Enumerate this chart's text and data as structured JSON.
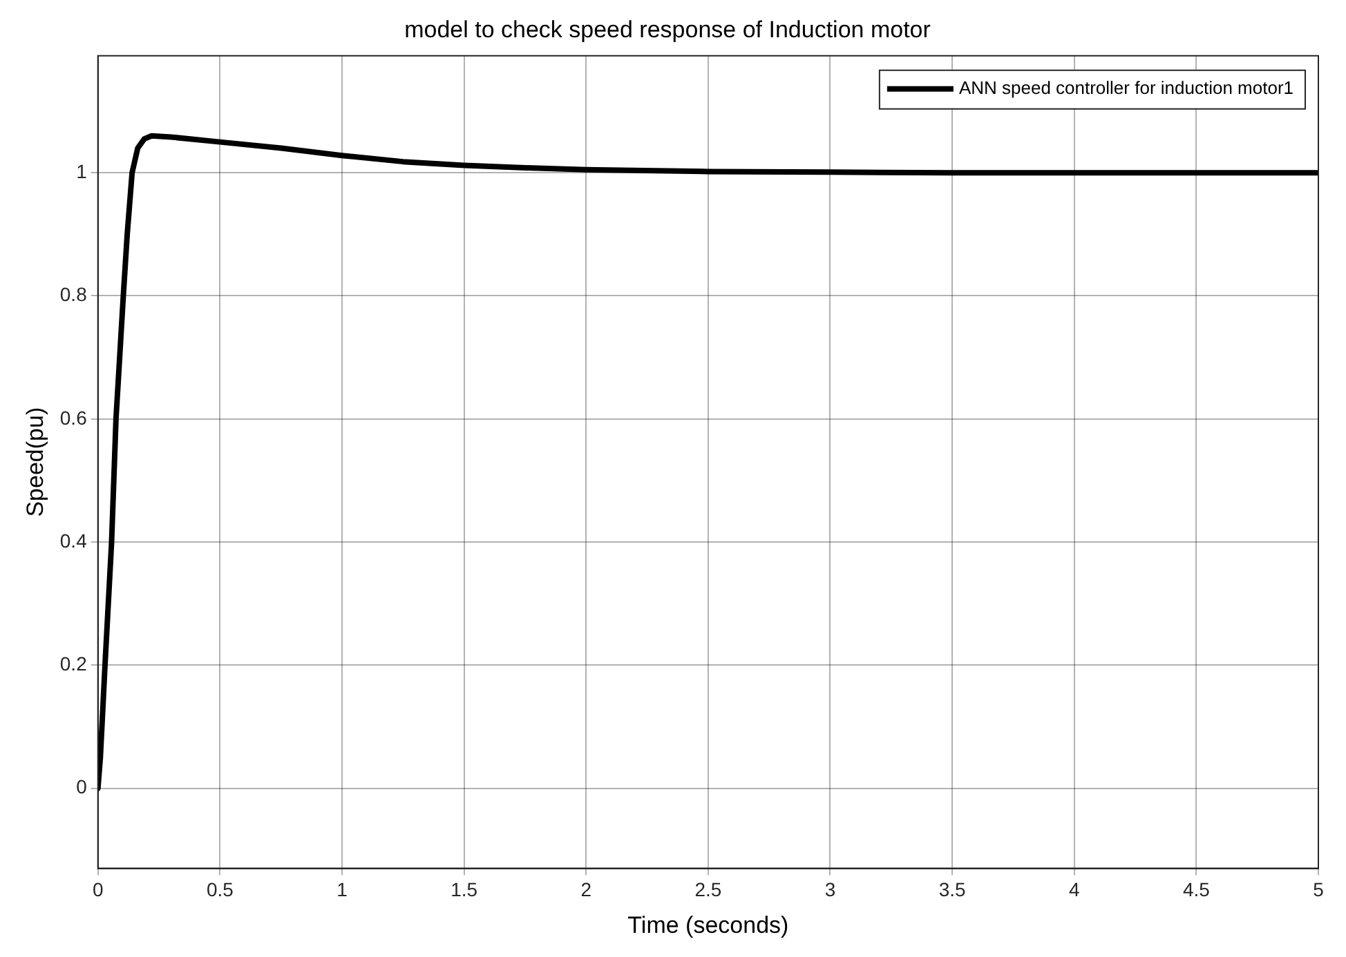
{
  "chart_data": {
    "type": "line",
    "title": "model to check speed response of Induction motor",
    "xlabel": "Time (seconds)",
    "ylabel": "Speed(pu)",
    "x": [
      0,
      0.01,
      0.029,
      0.056,
      0.074,
      0.104,
      0.12,
      0.14,
      0.163,
      0.19,
      0.22,
      0.3,
      0.5,
      0.75,
      1,
      1.25,
      1.5,
      1.75,
      2,
      2.5,
      3,
      3.5,
      4,
      4.5,
      5
    ],
    "series": [
      {
        "name": "ANN speed controller for induction motor1",
        "color": "#000000",
        "values": [
          0,
          0.05,
          0.2,
          0.4,
          0.6,
          0.8,
          0.9,
          1.0,
          1.04,
          1.055,
          1.06,
          1.058,
          1.05,
          1.04,
          1.028,
          1.018,
          1.012,
          1.008,
          1.005,
          1.002,
          1.001,
          1.0,
          1.0,
          1.0,
          1.0
        ]
      }
    ],
    "xlim": [
      0,
      5
    ],
    "xticks": [
      0,
      0.5,
      1,
      1.5,
      2,
      2.5,
      3,
      3.5,
      4,
      4.5,
      5
    ],
    "ylim": [
      -0.13,
      1.19
    ],
    "yticks": [
      0,
      0.2,
      0.4,
      0.6,
      0.8,
      1
    ],
    "grid": true,
    "legend": "top right",
    "marker": "none",
    "line_style": "solid"
  }
}
